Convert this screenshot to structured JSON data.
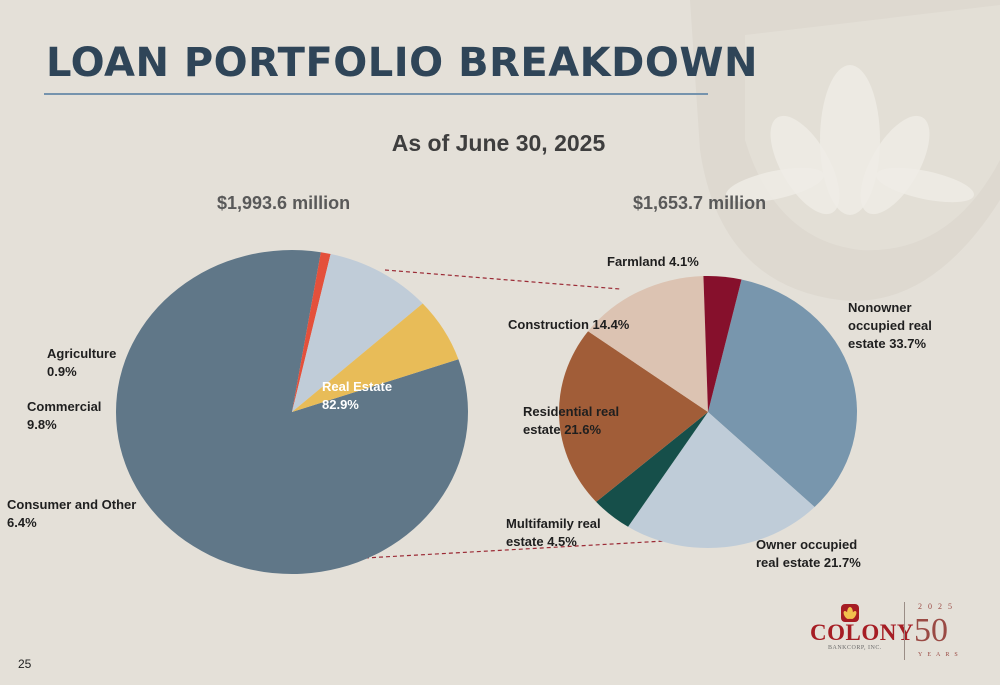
{
  "title": "LOAN PORTFOLIO BREAKDOWN",
  "subtitle": "As of June 30, 2025",
  "page_number": "25",
  "colors": {
    "title": "#2f4558",
    "background": "#e4e0d8",
    "real_estate": "#607788",
    "agriculture": "#e4503b",
    "commercial": "#c0ccd8",
    "consumer": "#e8bc58",
    "nonowner": "#7896ad",
    "owner": "#bfccd8",
    "multifamily": "#164f4a",
    "residential": "#a15d38",
    "construction": "#dcc3b2",
    "farmland": "#86102c",
    "brand_red": "#a61d24"
  },
  "logo": {
    "word": "COLONY",
    "sub": "BANKCORP, INC.",
    "year": "2025",
    "anniversary": "50",
    "years_word": "YEARS"
  },
  "chart_data": [
    {
      "type": "pie",
      "title": "$1,993.6 million",
      "slices": [
        {
          "name": "Real Estate",
          "value": 82.9,
          "label": "Real Estate\n82.9%",
          "color": "#607788"
        },
        {
          "name": "Agriculture",
          "value": 0.9,
          "label": "Agriculture\n0.9%",
          "color": "#e4503b"
        },
        {
          "name": "Commercial",
          "value": 9.8,
          "label": "Commercial\n9.8%",
          "color": "#c0ccd8"
        },
        {
          "name": "Consumer and Other",
          "value": 6.4,
          "label": "Consumer and Other\n6.4%",
          "color": "#e8bc58"
        }
      ]
    },
    {
      "type": "pie",
      "title": "$1,653.7 million",
      "slices": [
        {
          "name": "Nonowner occupied real estate",
          "value": 33.7,
          "label": "Nonowner\noccupied real\nestate  33.7%",
          "color": "#7896ad"
        },
        {
          "name": "Owner occupied real estate",
          "value": 21.7,
          "label": "Owner occupied\nreal estate 21.7%",
          "color": "#bfccd8"
        },
        {
          "name": "Multifamily real estate",
          "value": 4.5,
          "label": "Multifamily real\nestate 4.5%",
          "color": "#164f4a"
        },
        {
          "name": "Residential real estate",
          "value": 21.6,
          "label": "Residential real\nestate 21.6%",
          "color": "#a15d38"
        },
        {
          "name": "Construction",
          "value": 14.4,
          "label": "Construction 14.4%",
          "color": "#dcc3b2"
        },
        {
          "name": "Farmland",
          "value": 4.1,
          "label": "Farmland 4.1%",
          "color": "#86102c"
        }
      ]
    }
  ]
}
